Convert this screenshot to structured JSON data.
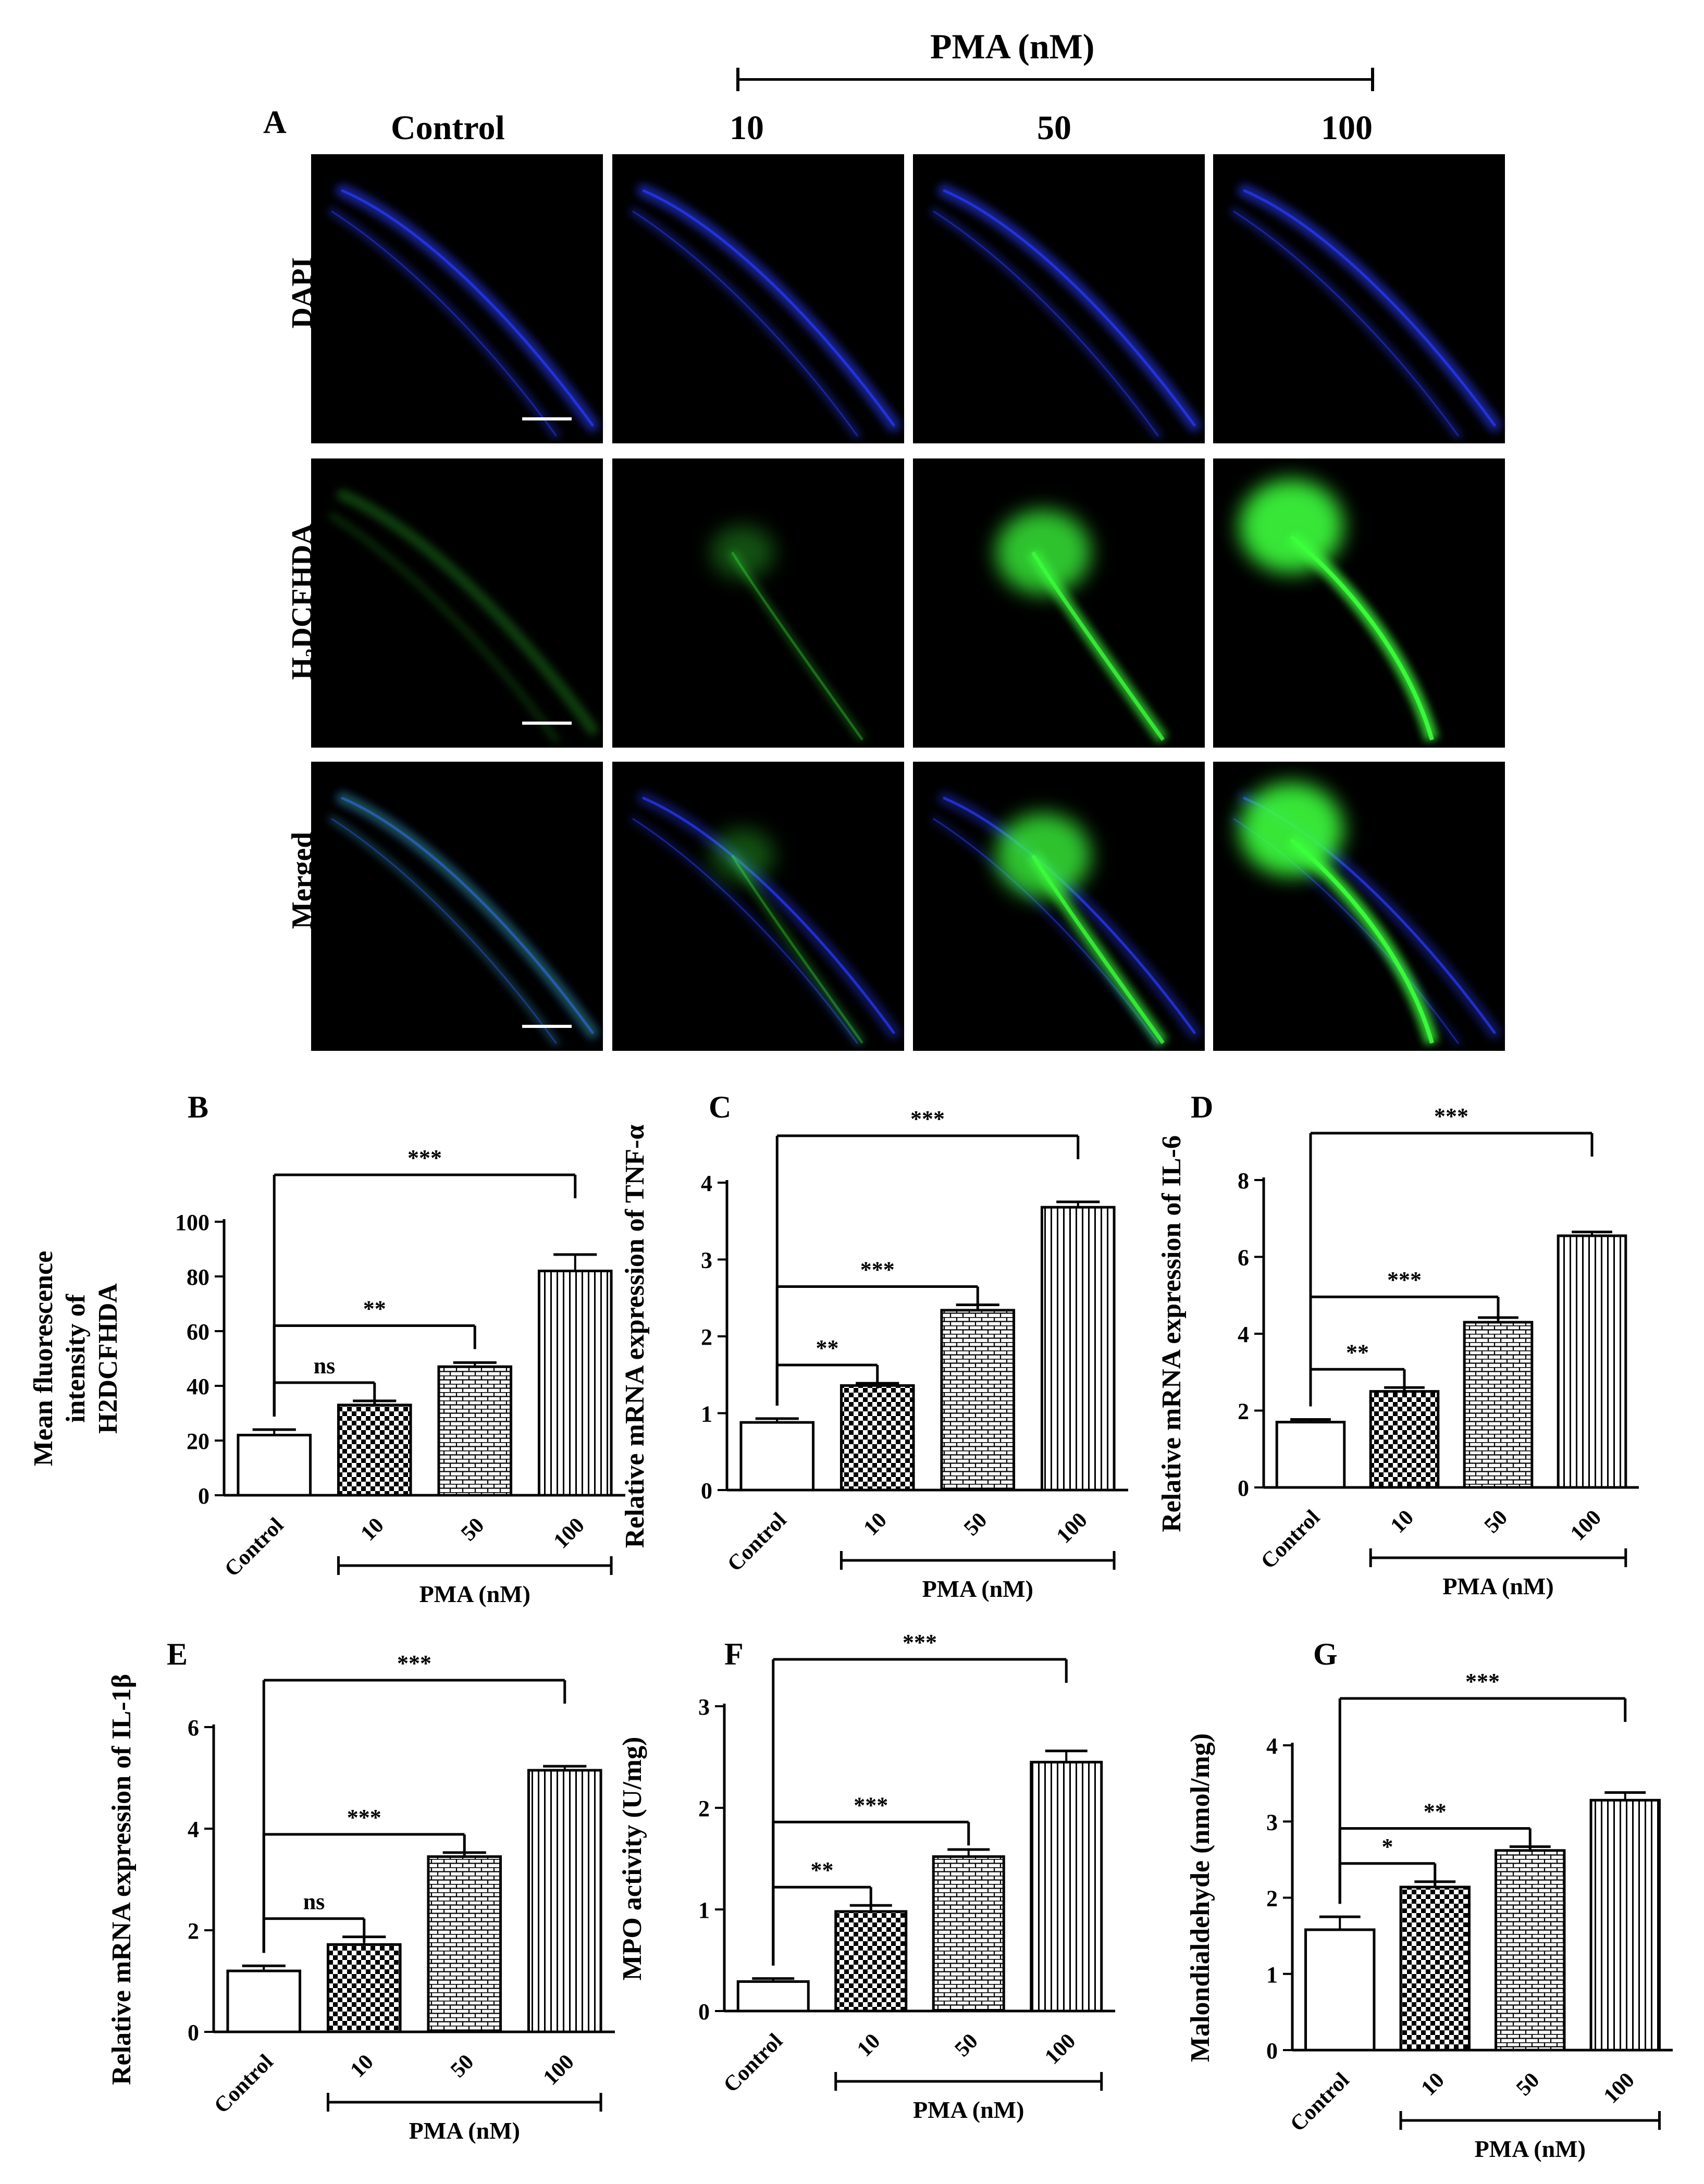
{
  "panelA": {
    "letter": "A",
    "pma_header": "PMA  (nM)",
    "columns": [
      "Control",
      "10",
      "50",
      "100"
    ],
    "rows": [
      {
        "label": "DAPI",
        "channel": "blue"
      },
      {
        "label": "H₂DCFHDA",
        "channel": "green"
      },
      {
        "label": "Merged",
        "channel": "merged"
      }
    ],
    "colors": {
      "blue": "#2a3cff",
      "green": "#3cff3c",
      "background": "#000000"
    }
  },
  "chart_data": [
    {
      "id": "B",
      "type": "bar",
      "letter": "B",
      "categories": [
        "Control",
        "10",
        "50",
        "100"
      ],
      "values": [
        22,
        33,
        47,
        82
      ],
      "errors": [
        2,
        1.5,
        1.5,
        6
      ],
      "ylabel_lines": [
        "Mean fluorescence",
        "intensity of",
        "H2DCFHDA"
      ],
      "ylim": [
        0,
        100
      ],
      "yticks": [
        0,
        20,
        40,
        60,
        80,
        100
      ],
      "group_label": "PMA (nM)",
      "comparisons": [
        {
          "to": 1,
          "label": "ns"
        },
        {
          "to": 2,
          "label": "**"
        },
        {
          "to": 3,
          "label": "***"
        }
      ]
    },
    {
      "id": "C",
      "type": "bar",
      "letter": "C",
      "categories": [
        "Control",
        "10",
        "50",
        "100"
      ],
      "values": [
        0.88,
        1.36,
        2.34,
        3.68
      ],
      "errors": [
        0.05,
        0.03,
        0.07,
        0.07
      ],
      "ylabel_lines": [
        "Relative mRNA expression of TNF-α"
      ],
      "ylim": [
        0,
        4
      ],
      "yticks": [
        0,
        1,
        2,
        3,
        4
      ],
      "group_label": "PMA (nM)",
      "comparisons": [
        {
          "to": 1,
          "label": "**"
        },
        {
          "to": 2,
          "label": "***"
        },
        {
          "to": 3,
          "label": "***"
        }
      ]
    },
    {
      "id": "D",
      "type": "bar",
      "letter": "D",
      "categories": [
        "Control",
        "10",
        "50",
        "100"
      ],
      "values": [
        1.7,
        2.5,
        4.3,
        6.55
      ],
      "errors": [
        0.07,
        0.1,
        0.12,
        0.1
      ],
      "ylabel_lines": [
        "Relative mRNA expression of IL-6"
      ],
      "ylim": [
        0,
        8
      ],
      "yticks": [
        0,
        2,
        4,
        6,
        8
      ],
      "group_label": "PMA (nM)",
      "comparisons": [
        {
          "to": 1,
          "label": "**"
        },
        {
          "to": 2,
          "label": "***"
        },
        {
          "to": 3,
          "label": "***"
        }
      ]
    },
    {
      "id": "E",
      "type": "bar",
      "letter": "E",
      "categories": [
        "Control",
        "10",
        "50",
        "100"
      ],
      "values": [
        1.2,
        1.72,
        3.45,
        5.15
      ],
      "errors": [
        0.1,
        0.15,
        0.08,
        0.08
      ],
      "ylabel_lines": [
        "Relative mRNA expression of IL-1β"
      ],
      "ylim": [
        0,
        6
      ],
      "yticks": [
        0,
        2,
        4,
        6
      ],
      "group_label": "PMA (nM)",
      "comparisons": [
        {
          "to": 1,
          "label": "ns"
        },
        {
          "to": 2,
          "label": "***"
        },
        {
          "to": 3,
          "label": "***"
        }
      ]
    },
    {
      "id": "F",
      "type": "bar",
      "letter": "F",
      "categories": [
        "Control",
        "10",
        "50",
        "100"
      ],
      "values": [
        0.29,
        0.98,
        1.52,
        2.45
      ],
      "errors": [
        0.03,
        0.06,
        0.07,
        0.11
      ],
      "ylabel_lines": [
        "MPO activity (U/mg)"
      ],
      "ylim": [
        0,
        3
      ],
      "yticks": [
        0,
        1,
        2,
        3
      ],
      "group_label": "PMA (nM)",
      "comparisons": [
        {
          "to": 1,
          "label": "**"
        },
        {
          "to": 2,
          "label": "***"
        },
        {
          "to": 3,
          "label": "***"
        }
      ]
    },
    {
      "id": "G",
      "type": "bar",
      "letter": "G",
      "categories": [
        "Control",
        "10",
        "50",
        "100"
      ],
      "values": [
        1.58,
        2.14,
        2.62,
        3.28
      ],
      "errors": [
        0.17,
        0.07,
        0.05,
        0.1
      ],
      "ylabel_lines": [
        "Malondialdehyde (nmol/mg)"
      ],
      "ylim": [
        0,
        4
      ],
      "yticks": [
        0,
        1,
        2,
        3,
        4
      ],
      "group_label": "PMA (nM)",
      "comparisons": [
        {
          "to": 1,
          "label": "*"
        },
        {
          "to": 2,
          "label": "**"
        },
        {
          "to": 3,
          "label": "***"
        }
      ]
    }
  ]
}
